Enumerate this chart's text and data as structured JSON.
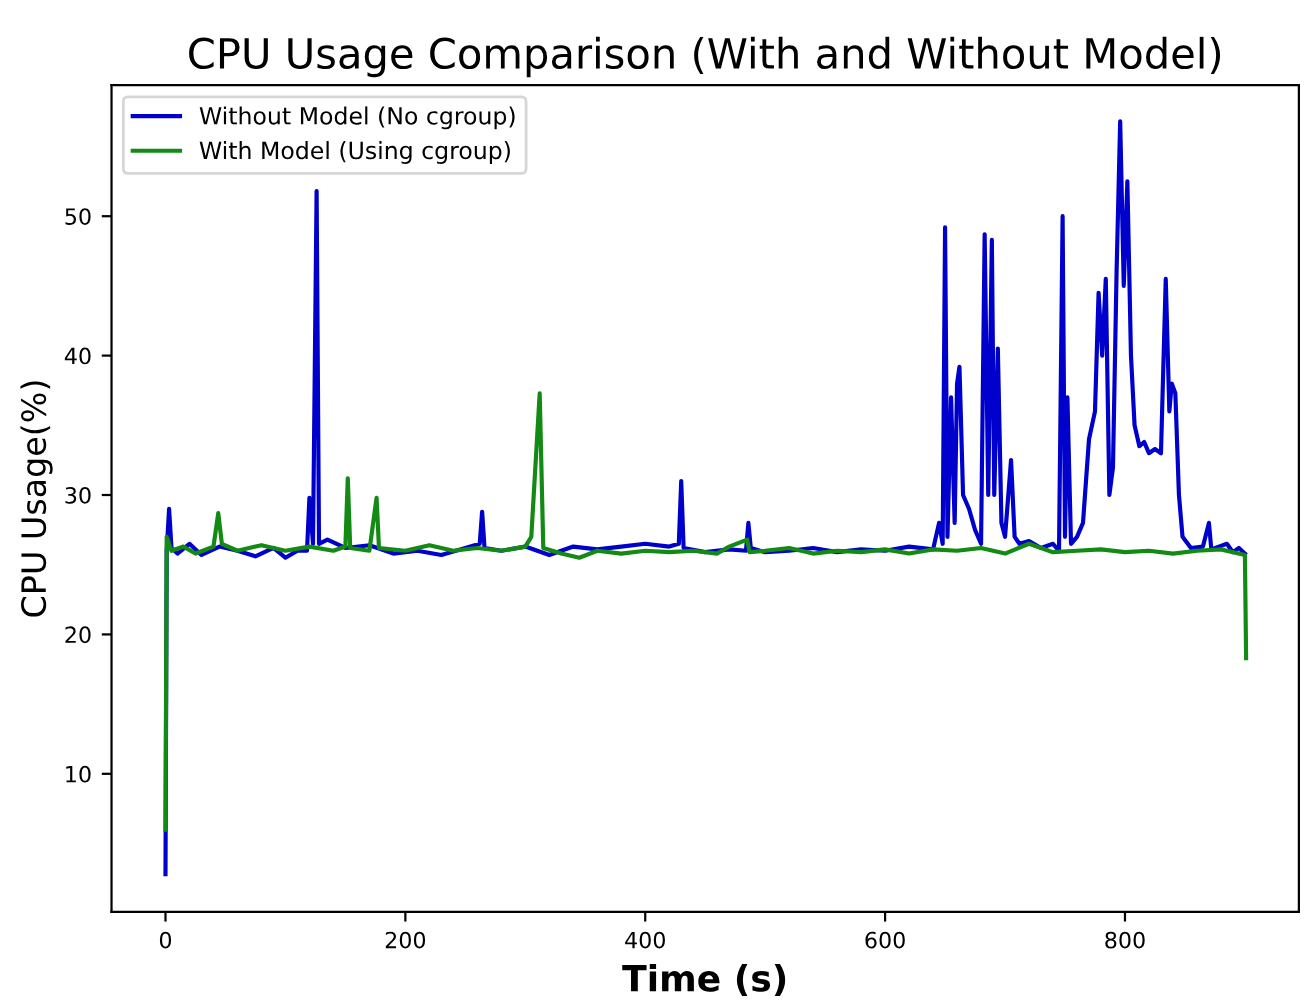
{
  "chart_data": {
    "type": "line",
    "title": "CPU Usage Comparison (With and Without Model)",
    "xlabel": "Time (s)",
    "ylabel": "CPU Usage(%)",
    "xlim": [
      -45,
      945
    ],
    "xticks": [
      0,
      200,
      400,
      600,
      800
    ],
    "ylim": [
      0.1,
      59.4
    ],
    "yticks": [
      10,
      20,
      30,
      40,
      50
    ],
    "grid": false,
    "legend": "top left",
    "marker": "none",
    "line_style": "solid",
    "series": [
      {
        "name": "Without Model (No cgroup)",
        "color": "#0000cc",
        "x": [
          0,
          1,
          3,
          5,
          10,
          20,
          30,
          45,
          60,
          75,
          90,
          100,
          110,
          118,
          120,
          123,
          126,
          128,
          135,
          150,
          170,
          190,
          210,
          230,
          250,
          262,
          264,
          266,
          280,
          300,
          320,
          340,
          360,
          380,
          400,
          420,
          428,
          430,
          432,
          450,
          470,
          484,
          486,
          488,
          500,
          520,
          540,
          560,
          580,
          600,
          620,
          640,
          645,
          648,
          650,
          652,
          655,
          658,
          660,
          662,
          665,
          670,
          675,
          680,
          683,
          686,
          689,
          691,
          694,
          697,
          700,
          705,
          708,
          712,
          720,
          730,
          740,
          745,
          748,
          750,
          752,
          755,
          760,
          765,
          770,
          775,
          778,
          781,
          784,
          787,
          790,
          793,
          796,
          799,
          802,
          805,
          808,
          812,
          816,
          820,
          825,
          830,
          834,
          837,
          839,
          842,
          845,
          848,
          855,
          865,
          870,
          872,
          885,
          890,
          895,
          900
        ],
        "values": [
          2.8,
          26,
          29,
          26.2,
          25.8,
          26.5,
          25.7,
          26.3,
          26,
          25.6,
          26.2,
          25.5,
          26,
          26,
          29.8,
          26.5,
          51.8,
          26.5,
          26.8,
          26.2,
          26.4,
          25.8,
          26,
          25.7,
          26.2,
          26.5,
          28.8,
          26.2,
          26,
          26.3,
          25.7,
          26.3,
          26.1,
          26.3,
          26.5,
          26.3,
          26.5,
          31,
          26.2,
          25.9,
          26.1,
          26,
          28,
          26.2,
          25.9,
          26,
          26.2,
          25.9,
          26.1,
          26,
          26.3,
          26.1,
          28,
          26.5,
          49.2,
          27,
          37,
          28,
          38,
          39.2,
          30,
          29,
          27.5,
          26.5,
          48.7,
          30,
          48.3,
          30,
          40.5,
          28,
          27,
          32.5,
          27,
          26.5,
          26.7,
          26.2,
          26.5,
          26,
          50,
          27,
          37,
          26.5,
          27,
          28,
          34,
          36,
          44.5,
          40,
          45.5,
          30,
          32,
          46,
          56.8,
          45,
          52.5,
          40,
          35,
          33.5,
          33.8,
          33,
          33.3,
          33,
          45.5,
          36,
          38,
          37.3,
          30,
          27,
          26.2,
          26.3,
          28,
          26.1,
          26.5,
          25.9,
          26.2,
          25.8
        ]
      },
      {
        "name": "With Model (Using cgroup)",
        "color": "#138a13",
        "x": [
          0,
          1,
          5,
          15,
          25,
          40,
          44,
          47,
          60,
          80,
          100,
          120,
          140,
          150,
          152,
          154,
          170,
          176,
          178,
          200,
          220,
          240,
          260,
          280,
          300,
          305,
          312,
          315,
          330,
          345,
          360,
          380,
          400,
          420,
          440,
          460,
          470,
          485,
          487,
          500,
          520,
          540,
          560,
          580,
          600,
          620,
          640,
          660,
          680,
          700,
          720,
          740,
          760,
          780,
          800,
          820,
          840,
          860,
          880,
          900,
          901
        ],
        "values": [
          6,
          27,
          26,
          26.3,
          25.8,
          26.3,
          28.7,
          26.5,
          26,
          26.4,
          26,
          26.3,
          26,
          26.3,
          31.2,
          26.2,
          26,
          29.8,
          26.2,
          26,
          26.4,
          26,
          26.2,
          26,
          26.3,
          27,
          37.3,
          26.2,
          25.8,
          25.5,
          26,
          25.8,
          26,
          25.9,
          26,
          25.8,
          26.3,
          26.8,
          25.9,
          26,
          26.2,
          25.8,
          26,
          25.9,
          26.1,
          25.8,
          26.1,
          26,
          26.2,
          25.8,
          26.5,
          25.9,
          26,
          26.1,
          25.9,
          26,
          25.8,
          26,
          26.1,
          25.7,
          18.3
        ]
      }
    ]
  }
}
